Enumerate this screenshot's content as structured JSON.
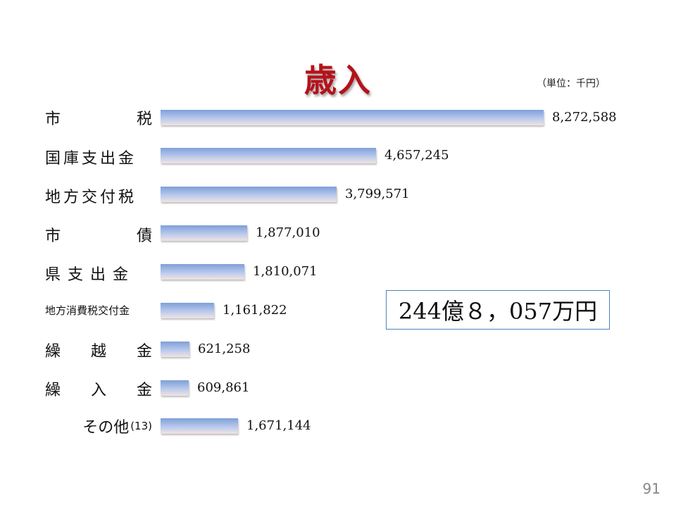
{
  "title": "歳入",
  "unit": "（単位：千円）",
  "total": "244億８，057万円",
  "page_number": "91",
  "colors": {
    "title": "#b5121b",
    "bar_top": "#7f9fd8",
    "bar_bottom": "#f1e3e3",
    "box_border": "#4f81bd"
  },
  "chart_data": {
    "type": "bar",
    "orientation": "horizontal",
    "title": "歳入",
    "unit": "（単位：千円）",
    "categories": [
      "市税",
      "国庫支出金",
      "地方交付税",
      "市債",
      "県支出金",
      "地方消費税交付金",
      "繰越金",
      "繰入金",
      "その他(13)"
    ],
    "values": [
      8272588,
      4657245,
      3799571,
      1877010,
      1810071,
      1161822,
      621258,
      609861,
      1671144
    ],
    "value_labels": [
      "8,272,588",
      "4,657,245",
      "3,799,571",
      "1,877,010",
      "1,810,071",
      "1,161,822",
      "621,258",
      "609,861",
      "1,671,144"
    ],
    "xlim": [
      0,
      8272588
    ],
    "grid": false
  }
}
